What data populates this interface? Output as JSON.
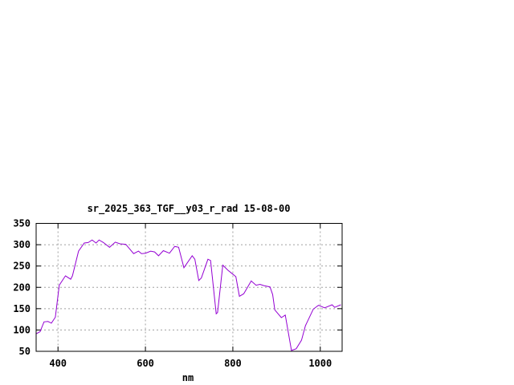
{
  "chart_data": {
    "type": "line",
    "title": "sr_2025_363_TGF__y03_r_rad 15-08-00",
    "xlabel": "nm",
    "ylabel": "",
    "xlim": [
      350,
      1050
    ],
    "ylim": [
      50,
      350
    ],
    "xticks": [
      400,
      600,
      800,
      1000
    ],
    "yticks": [
      50,
      100,
      150,
      200,
      250,
      300,
      350
    ],
    "grid": true,
    "series": [
      {
        "color": "#9400d3",
        "x": [
          350,
          359,
          368,
          377,
          385,
          394,
          403,
          417,
          429,
          433,
          447,
          460,
          469,
          478,
          487,
          494,
          504,
          518,
          531,
          542,
          555,
          573,
          584,
          591,
          600,
          612,
          621,
          630,
          641,
          655,
          667,
          676,
          688,
          707,
          713,
          722,
          728,
          743,
          749,
          762,
          765,
          777,
          789,
          801,
          807,
          815,
          825,
          842,
          853,
          862,
          871,
          885,
          891,
          896,
          911,
          920,
          934,
          945,
          957,
          966,
          984,
          996,
          1010,
          1027,
          1033,
          1047
        ],
        "y": [
          91,
          96,
          119,
          120,
          116,
          130,
          205,
          227,
          219,
          227,
          285,
          304,
          305,
          311,
          304,
          311,
          305,
          294,
          306,
          302,
          301,
          279,
          285,
          279,
          280,
          285,
          283,
          274,
          286,
          280,
          296,
          294,
          246,
          274,
          266,
          216,
          222,
          266,
          263,
          138,
          141,
          252,
          240,
          230,
          225,
          179,
          185,
          215,
          205,
          207,
          204,
          201,
          183,
          147,
          129,
          135,
          52,
          56,
          76,
          110,
          149,
          158,
          152,
          159,
          153,
          159
        ]
      }
    ]
  }
}
